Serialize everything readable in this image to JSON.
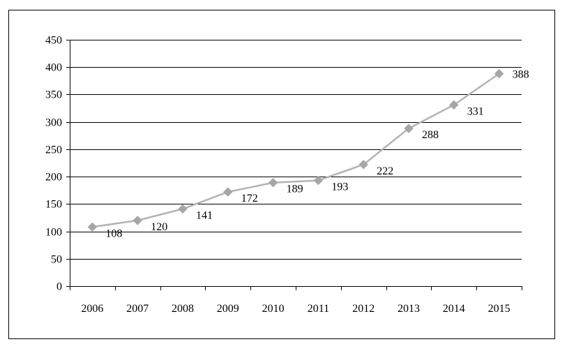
{
  "chart_data": {
    "type": "line",
    "categories": [
      "2006",
      "2007",
      "2008",
      "2009",
      "2010",
      "2011",
      "2012",
      "2013",
      "2014",
      "2015"
    ],
    "series": [
      {
        "values": [
          108,
          120,
          141,
          172,
          189,
          193,
          222,
          288,
          331,
          388
        ]
      }
    ],
    "data_labels": [
      "108",
      "120",
      "141",
      "172",
      "189",
      "193",
      "222",
      "288",
      "331",
      "388"
    ],
    "y_ticks": [
      "0",
      "50",
      "100",
      "150",
      "200",
      "250",
      "300",
      "350",
      "400",
      "450"
    ],
    "ylim": [
      0,
      450
    ],
    "grid": true,
    "legend": "none",
    "title": "",
    "xlabel": "",
    "ylabel": "",
    "colors": {
      "line": "#b3b3b3",
      "marker": "#a6a6a6",
      "grid": "#000000",
      "axis": "#000000"
    }
  }
}
